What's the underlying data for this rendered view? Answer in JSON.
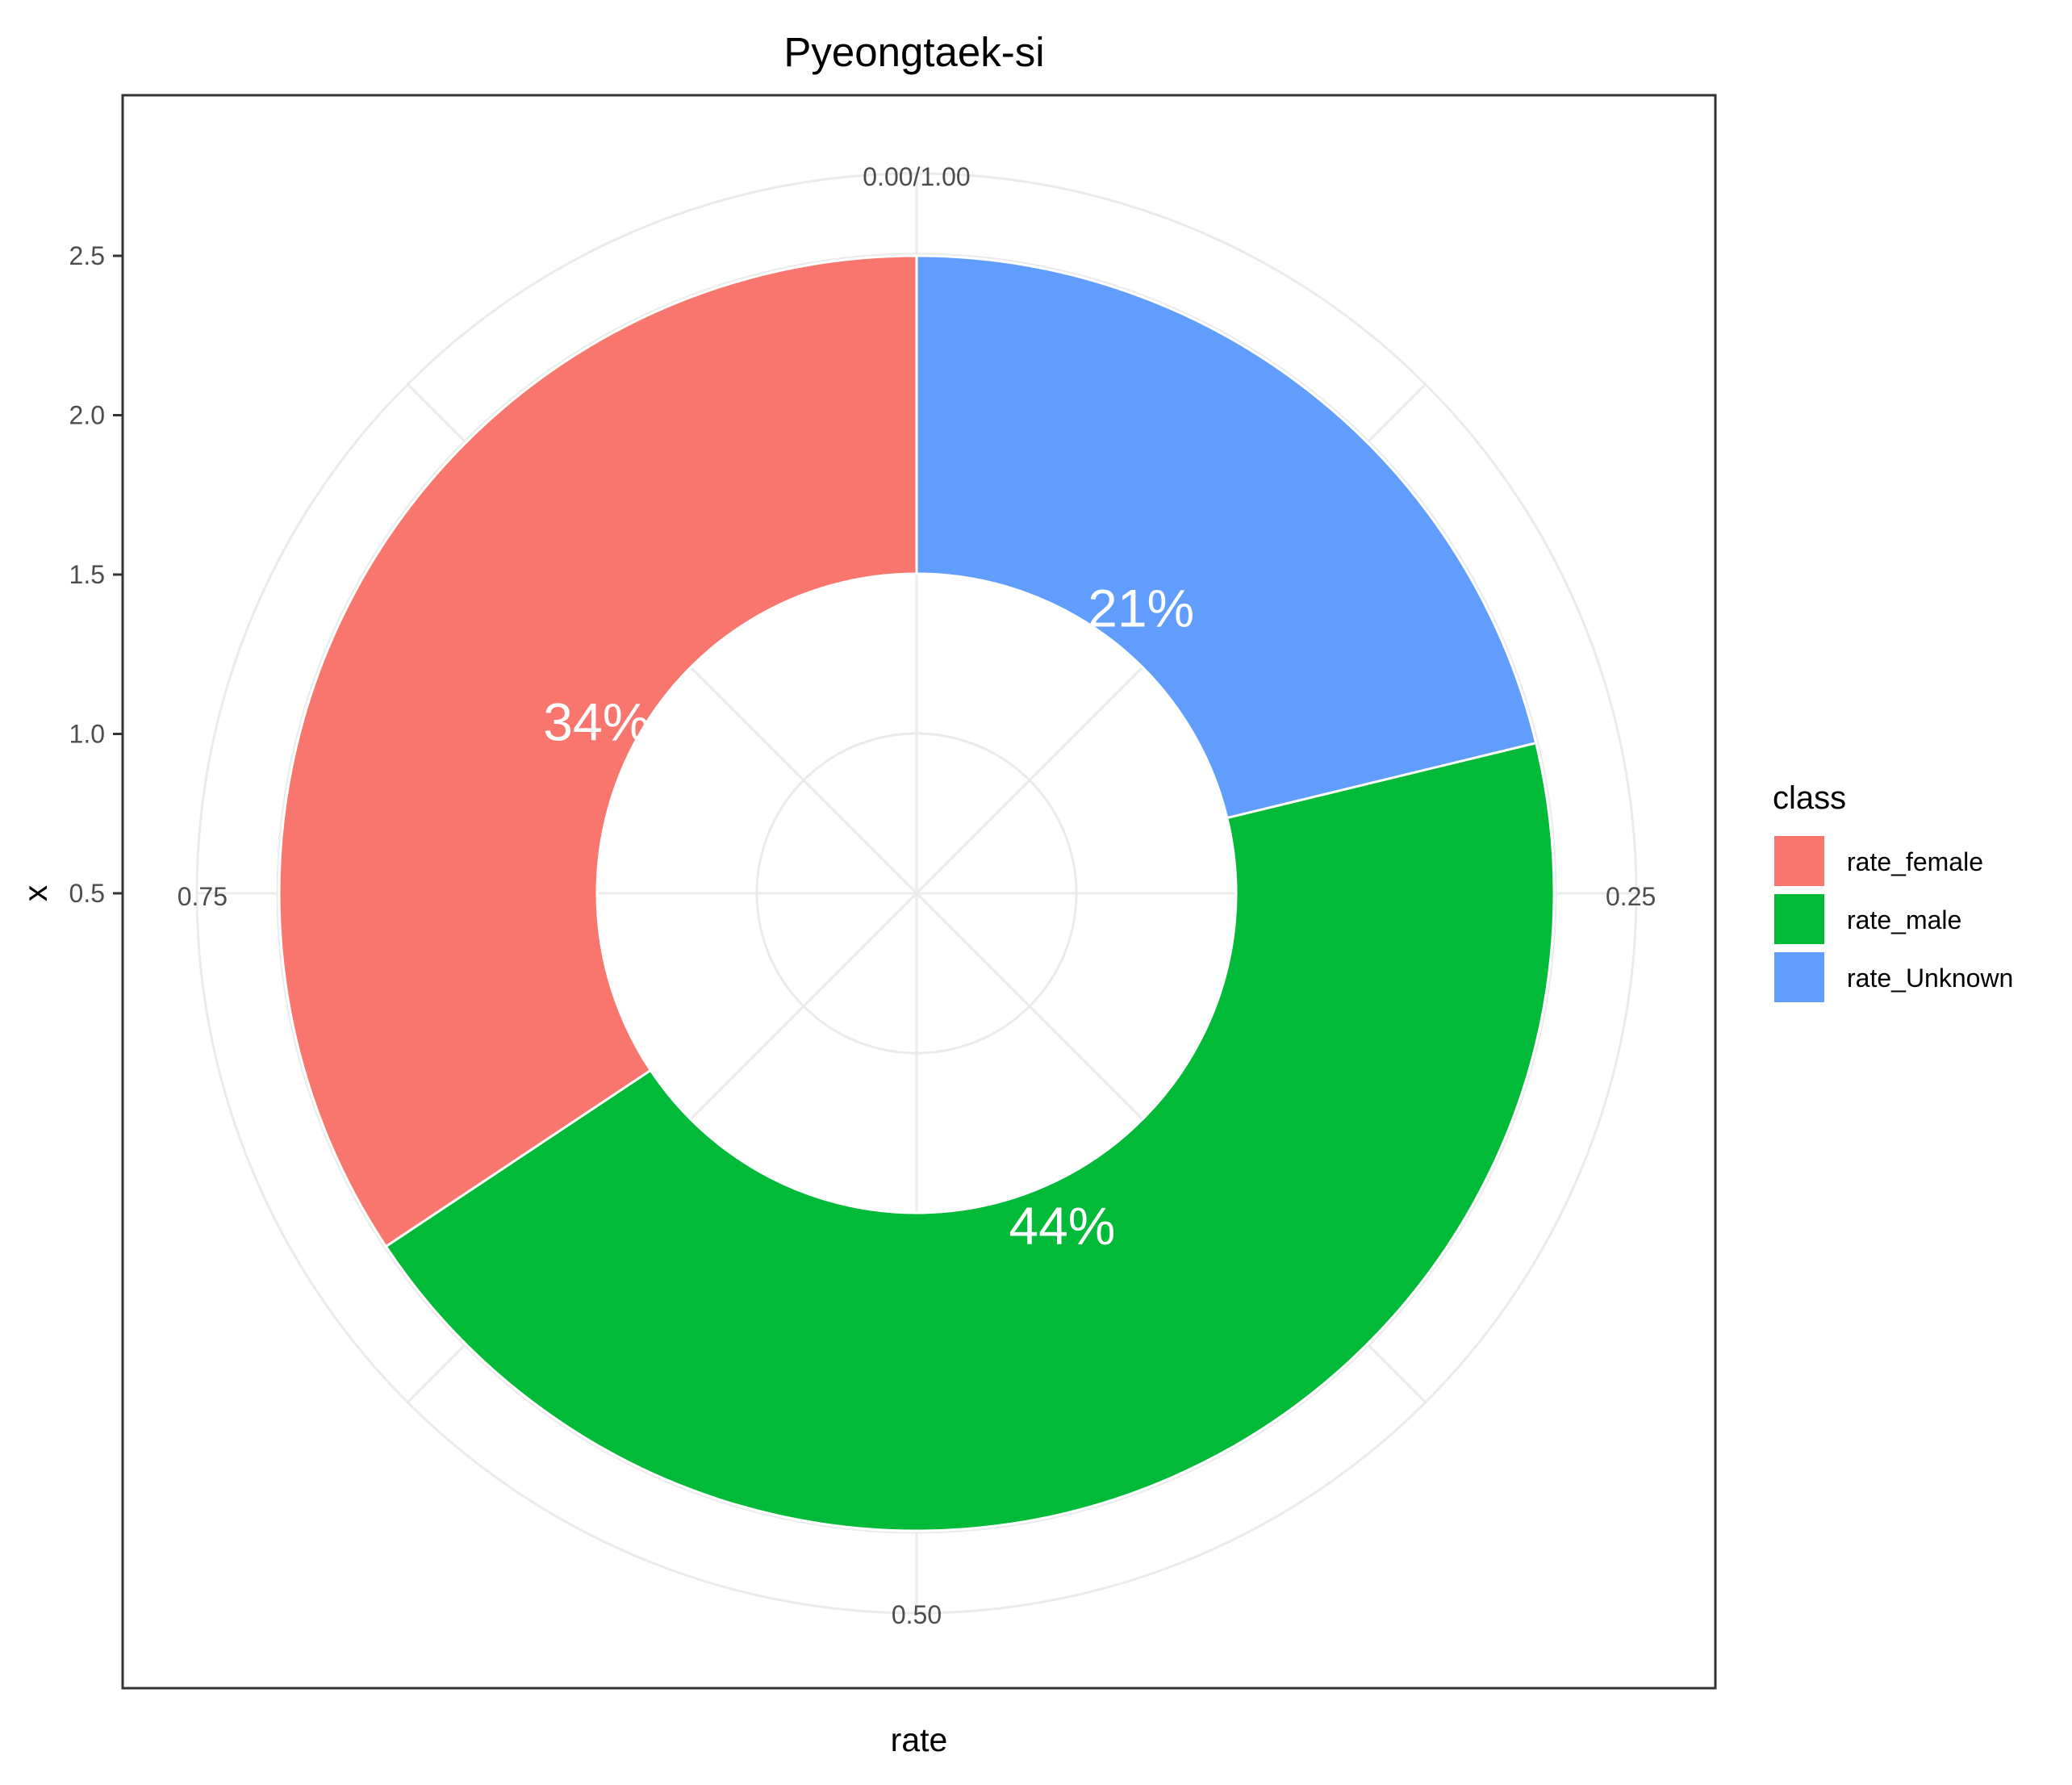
{
  "chart_data": {
    "type": "pie",
    "title": "Pyeongtaek-si",
    "xlabel": "rate",
    "ylabel": "x",
    "legend_title": "class",
    "legend_position": "right",
    "categories": [
      "rate_female",
      "rate_male",
      "rate_Unknown"
    ],
    "values": [
      0.34,
      0.44,
      0.21
    ],
    "labels": [
      "34%",
      "44%",
      "21%"
    ],
    "colors": [
      "#F8766D",
      "#00BA38",
      "#619CFF"
    ],
    "angular_ticks": [
      "0.00/1.00",
      "0.25",
      "0.50",
      "0.75"
    ],
    "radial_ticks": [
      "0.5",
      "1.0",
      "1.5",
      "2.0",
      "2.5"
    ],
    "ylim": [
      0,
      2.5
    ],
    "grid": true
  }
}
